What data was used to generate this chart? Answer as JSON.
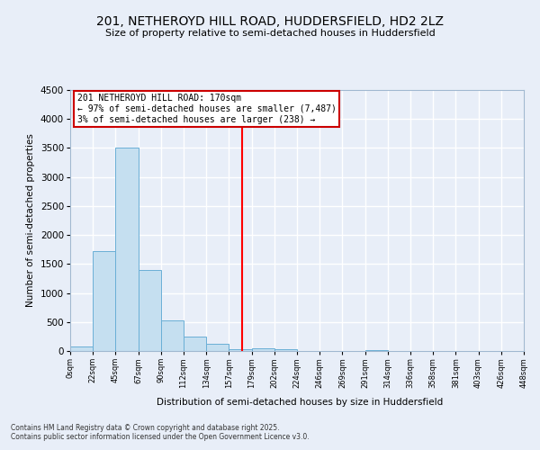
{
  "title_line1": "201, NETHEROYD HILL ROAD, HUDDERSFIELD, HD2 2LZ",
  "title_line2": "Size of property relative to semi-detached houses in Huddersfield",
  "xlabel": "Distribution of semi-detached houses by size in Huddersfield",
  "ylabel": "Number of semi-detached properties",
  "bin_labels": [
    "0sqm",
    "22sqm",
    "45sqm",
    "67sqm",
    "90sqm",
    "112sqm",
    "134sqm",
    "157sqm",
    "179sqm",
    "202sqm",
    "224sqm",
    "246sqm",
    "269sqm",
    "291sqm",
    "314sqm",
    "336sqm",
    "358sqm",
    "381sqm",
    "403sqm",
    "426sqm",
    "448sqm"
  ],
  "bar_heights": [
    75,
    1720,
    3500,
    1390,
    530,
    250,
    125,
    30,
    50,
    30,
    0,
    0,
    0,
    20,
    0,
    0,
    0,
    0,
    0,
    0
  ],
  "property_size": 170,
  "annotation_text_line1": "201 NETHEROYD HILL ROAD: 170sqm",
  "annotation_text_line2": "← 97% of semi-detached houses are smaller (7,487)",
  "annotation_text_line3": "3% of semi-detached houses are larger (238) →",
  "bar_color": "#c5dff0",
  "bar_edge_color": "#6aafd6",
  "vline_color": "red",
  "background_color": "#e8eef8",
  "plot_bg_color": "#e8eef8",
  "grid_color": "#ffffff",
  "annotation_box_facecolor": "#ffffff",
  "annotation_box_edgecolor": "#cc0000",
  "footer_line1": "Contains HM Land Registry data © Crown copyright and database right 2025.",
  "footer_line2": "Contains public sector information licensed under the Open Government Licence v3.0.",
  "ylim": [
    0,
    4500
  ],
  "yticks": [
    0,
    500,
    1000,
    1500,
    2000,
    2500,
    3000,
    3500,
    4000,
    4500
  ]
}
